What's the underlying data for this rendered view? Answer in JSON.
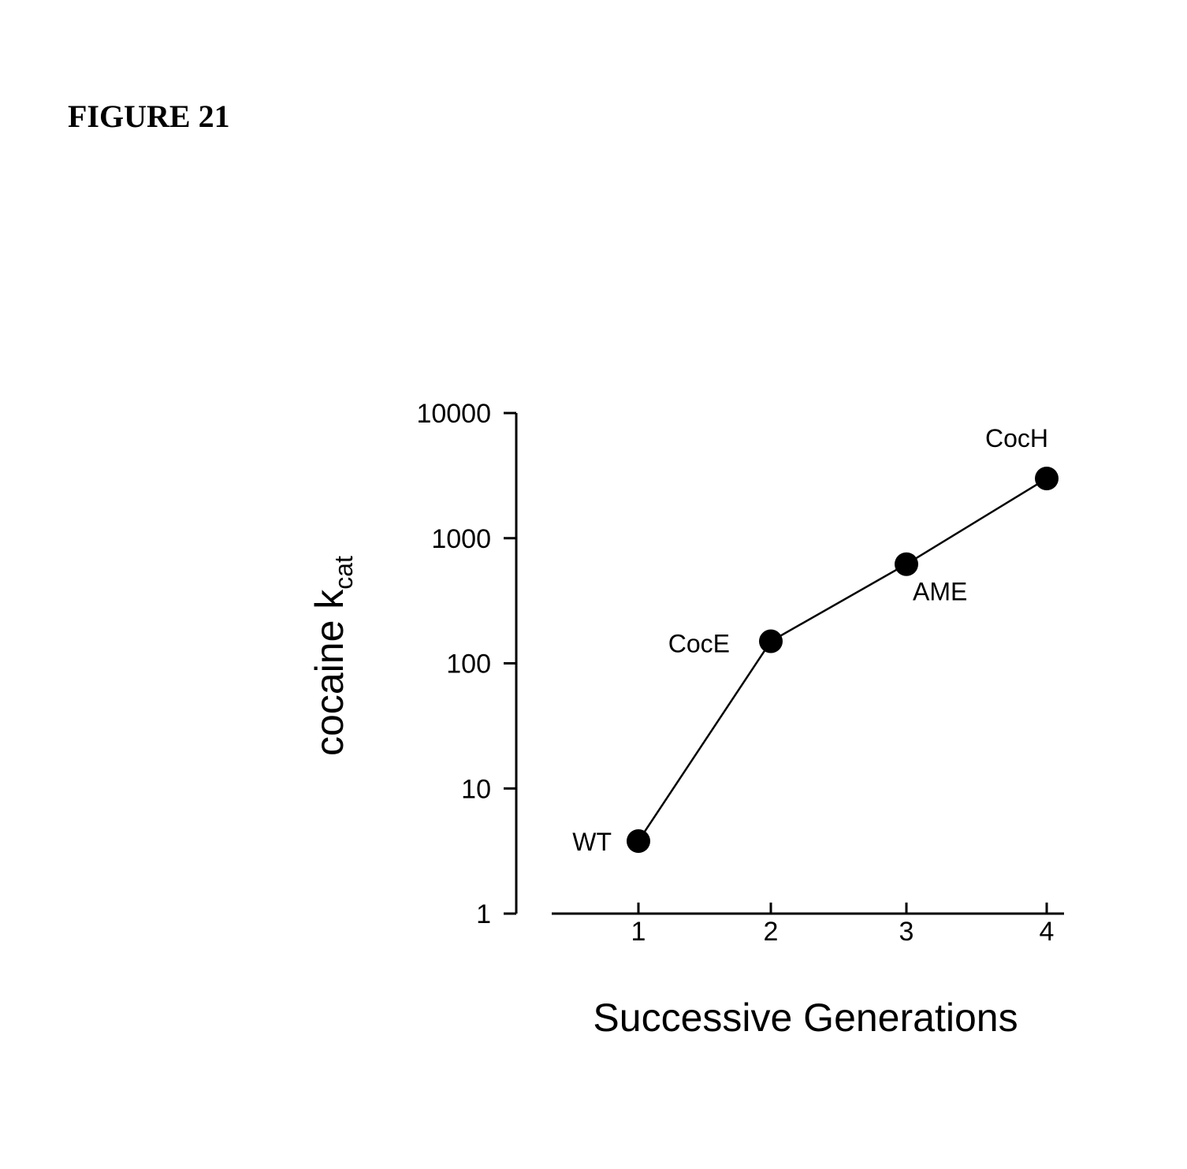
{
  "figure_label": "FIGURE 21",
  "chart_data": {
    "type": "line",
    "x": [
      1,
      2,
      3,
      4
    ],
    "y": [
      3.8,
      150,
      620,
      3000
    ],
    "point_labels": [
      "WT",
      "CocE",
      "AME",
      "CocH"
    ],
    "xlabel": "Successive Generations",
    "ylabel": "cocaine k",
    "ylabel_subscript": "cat",
    "x_ticks": [
      "1",
      "2",
      "3",
      "4"
    ],
    "y_ticks": [
      "1",
      "10",
      "100",
      "1000",
      "10000"
    ],
    "y_tick_values": [
      1,
      10,
      100,
      1000,
      10000
    ],
    "yscale": "log",
    "ylim": [
      1,
      10000
    ],
    "xlim": [
      0.5,
      4.1
    ],
    "grid": false,
    "line_color": "#000000",
    "marker_color": "#000000"
  }
}
